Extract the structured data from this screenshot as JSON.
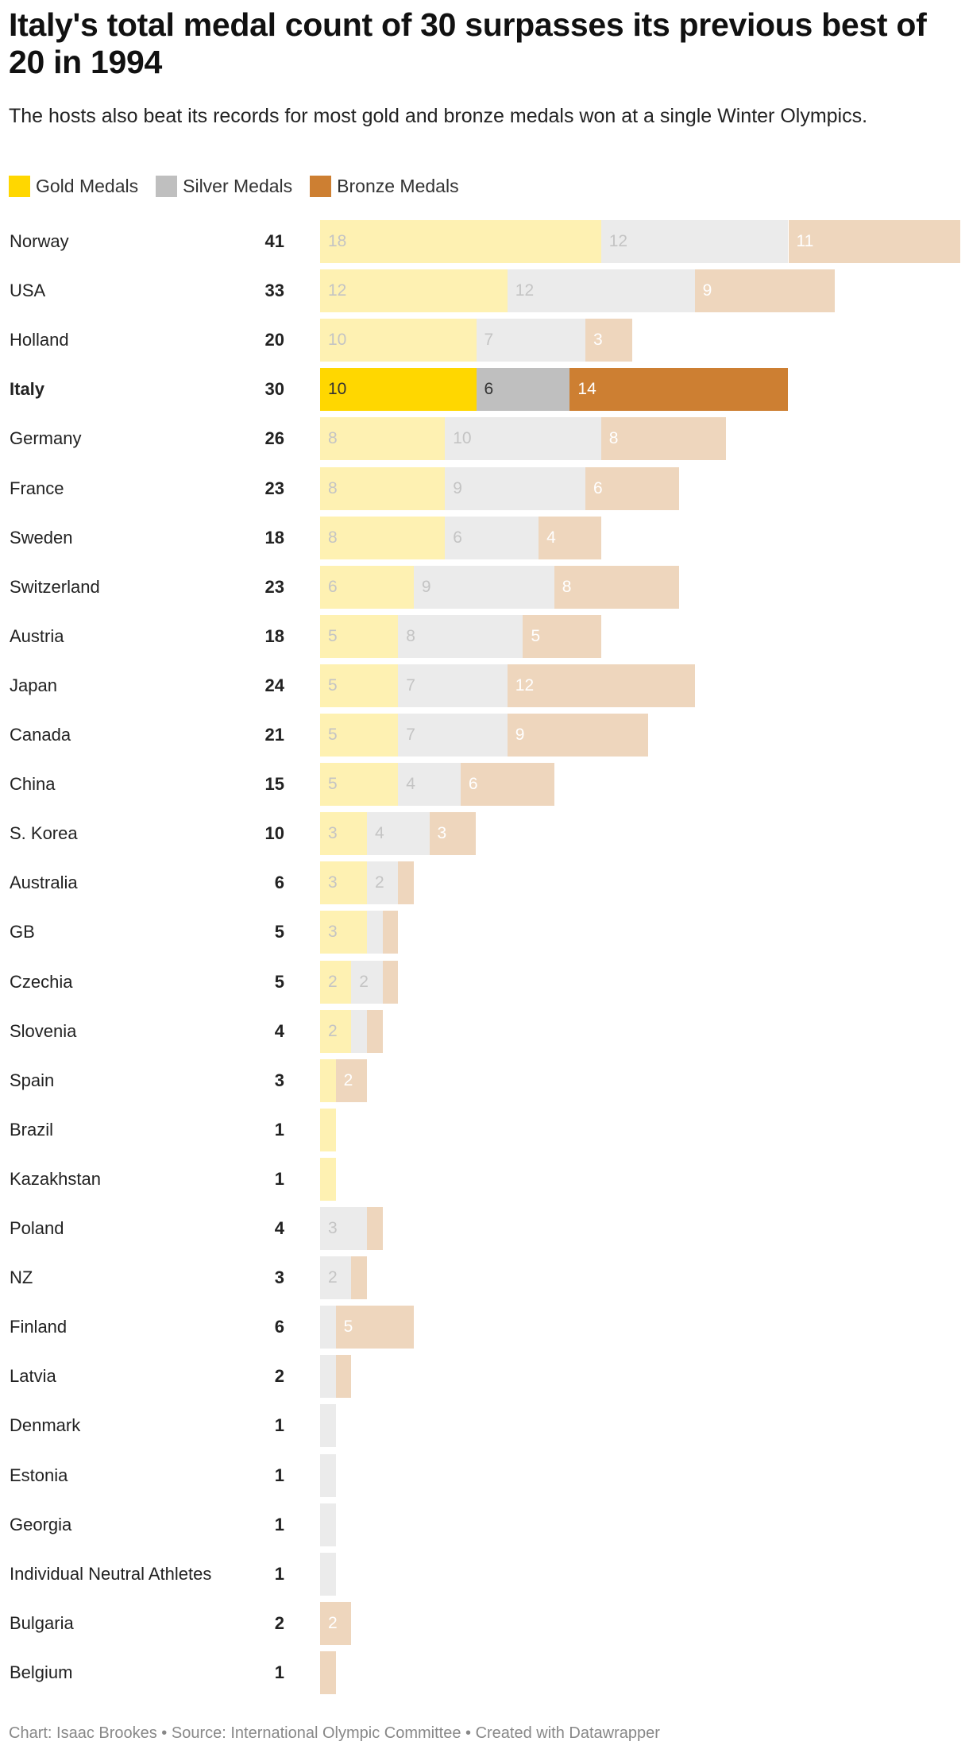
{
  "title": "Italy's total medal count of 30 surpasses its previous best of 20 in 1994",
  "subtitle": "The hosts also beat its records for most gold and bronze medals won at a single Winter Olympics.",
  "footer": "Chart: Isaac Brookes • Source: International Olympic Committee • Created with Datawrapper",
  "colors": {
    "gold": "#FFD700",
    "silver": "#BFBFBF",
    "bronze": "#CD7F32",
    "gold_faded": "#FEF1B2",
    "silver_faded": "#EBEBEB",
    "bronze_faded": "#EED6BD"
  },
  "chart_data": {
    "type": "bar",
    "orientation": "horizontal",
    "stacked": true,
    "highlighted": "Italy",
    "legend_position": "top-left",
    "legend": [
      "Gold Medals",
      "Silver Medals",
      "Bronze Medals"
    ],
    "categories": [
      "Norway",
      "USA",
      "Holland",
      "Italy",
      "Germany",
      "France",
      "Sweden",
      "Switzerland",
      "Austria",
      "Japan",
      "Canada",
      "China",
      "S. Korea",
      "Australia",
      "GB",
      "Czechia",
      "Slovenia",
      "Spain",
      "Brazil",
      "Kazakhstan",
      "Poland",
      "NZ",
      "Finland",
      "Latvia",
      "Denmark",
      "Estonia",
      "Georgia",
      "Individual Neutral Athletes",
      "Bulgaria",
      "Belgium"
    ],
    "totals": [
      41,
      33,
      20,
      30,
      26,
      23,
      18,
      23,
      18,
      24,
      21,
      15,
      10,
      6,
      5,
      5,
      4,
      3,
      1,
      1,
      4,
      3,
      6,
      2,
      1,
      1,
      1,
      1,
      2,
      1
    ],
    "series": [
      {
        "name": "Gold Medals",
        "values": [
          18,
          12,
          10,
          10,
          8,
          8,
          8,
          6,
          5,
          5,
          5,
          5,
          3,
          3,
          3,
          2,
          2,
          1,
          1,
          1,
          0,
          0,
          0,
          0,
          0,
          0,
          0,
          0,
          0,
          0
        ]
      },
      {
        "name": "Silver Medals",
        "values": [
          12,
          12,
          7,
          6,
          10,
          9,
          6,
          9,
          8,
          7,
          7,
          4,
          4,
          2,
          1,
          2,
          1,
          0,
          0,
          0,
          3,
          2,
          1,
          1,
          1,
          1,
          1,
          1,
          0,
          0
        ]
      },
      {
        "name": "Bronze Medals",
        "values": [
          11,
          9,
          3,
          14,
          8,
          6,
          4,
          8,
          5,
          12,
          9,
          6,
          3,
          1,
          1,
          1,
          1,
          2,
          0,
          0,
          1,
          1,
          5,
          1,
          0,
          0,
          0,
          0,
          2,
          1
        ]
      }
    ]
  }
}
